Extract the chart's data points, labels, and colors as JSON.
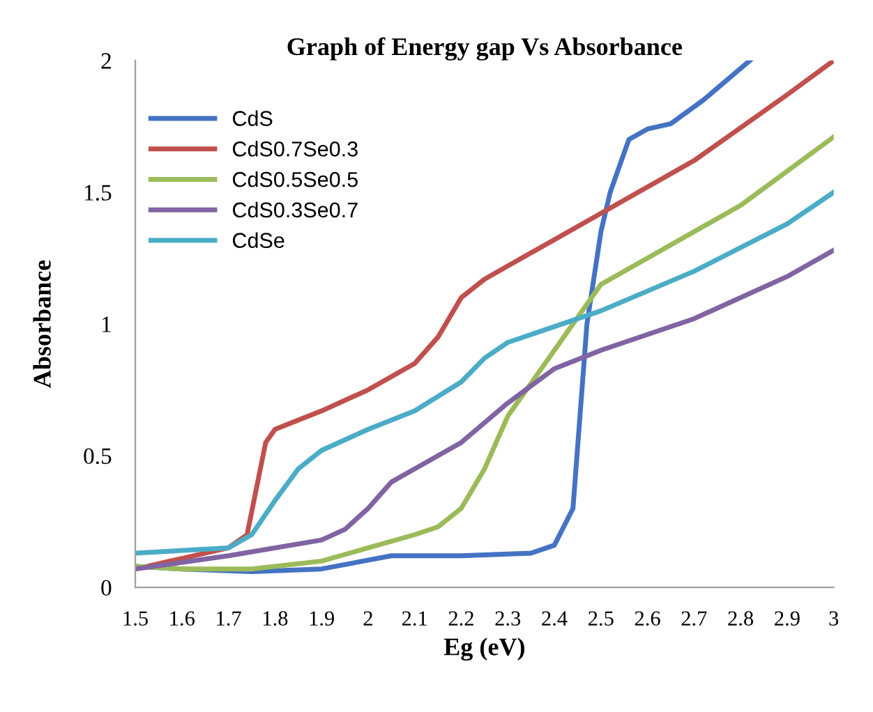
{
  "chart_data": {
    "type": "line",
    "title": "Graph of Energy gap Vs Absorbance",
    "xlabel": "Eg (eV)",
    "ylabel": "Absorbance",
    "xlim": [
      1.5,
      3.0
    ],
    "xticks": [
      1.5,
      1.6,
      1.7,
      1.8,
      1.9,
      2,
      2.1,
      2.2,
      2.3,
      2.4,
      2.5,
      2.6,
      2.7,
      2.8,
      2.9,
      3
    ],
    "ylim": [
      0,
      2
    ],
    "yticks": [
      0,
      0.5,
      1,
      1.5,
      2
    ],
    "grid": false,
    "legend": "top left",
    "marker": "none",
    "line_style": "solid",
    "series": [
      {
        "name": "CdS",
        "color": "#4472c4",
        "x": [
          1.5,
          1.6,
          1.75,
          1.9,
          2.05,
          2.2,
          2.35,
          2.4,
          2.44,
          2.47,
          2.5,
          2.52,
          2.56,
          2.6,
          2.65,
          2.72,
          2.82
        ],
        "values": [
          0.08,
          0.07,
          0.06,
          0.07,
          0.12,
          0.12,
          0.13,
          0.16,
          0.3,
          1.0,
          1.35,
          1.5,
          1.7,
          1.74,
          1.76,
          1.85,
          2.0
        ]
      },
      {
        "name": "CdS0.7Se0.3",
        "color": "#c0504d",
        "x": [
          1.5,
          1.6,
          1.7,
          1.74,
          1.78,
          1.8,
          1.9,
          2.0,
          2.1,
          2.15,
          2.2,
          2.25,
          2.3,
          2.5,
          2.7,
          2.9,
          3.0
        ],
        "values": [
          0.07,
          0.11,
          0.15,
          0.2,
          0.55,
          0.6,
          0.67,
          0.75,
          0.85,
          0.95,
          1.1,
          1.17,
          1.22,
          1.42,
          1.62,
          1.87,
          2.0
        ]
      },
      {
        "name": "CdS0.5Se0.5",
        "color": "#9bbb59",
        "x": [
          1.5,
          1.6,
          1.75,
          1.9,
          2.0,
          2.1,
          2.15,
          2.2,
          2.25,
          2.3,
          2.4,
          2.5,
          2.6,
          2.8,
          3.0
        ],
        "values": [
          0.08,
          0.07,
          0.07,
          0.1,
          0.15,
          0.2,
          0.23,
          0.3,
          0.45,
          0.65,
          0.9,
          1.15,
          1.25,
          1.45,
          1.71
        ]
      },
      {
        "name": "CdS0.3Se0.7",
        "color": "#8064a2",
        "x": [
          1.5,
          1.7,
          1.9,
          1.95,
          2.0,
          2.05,
          2.1,
          2.2,
          2.3,
          2.4,
          2.5,
          2.7,
          2.9,
          3.0
        ],
        "values": [
          0.07,
          0.12,
          0.18,
          0.22,
          0.3,
          0.4,
          0.45,
          0.55,
          0.7,
          0.83,
          0.9,
          1.02,
          1.18,
          1.28
        ]
      },
      {
        "name": "CdSe",
        "color": "#4bacc6",
        "x": [
          1.5,
          1.7,
          1.75,
          1.8,
          1.85,
          1.9,
          2.0,
          2.1,
          2.2,
          2.25,
          2.3,
          2.5,
          2.7,
          2.9,
          3.0
        ],
        "values": [
          0.13,
          0.15,
          0.2,
          0.33,
          0.45,
          0.52,
          0.6,
          0.67,
          0.78,
          0.87,
          0.93,
          1.05,
          1.2,
          1.38,
          1.5
        ]
      }
    ]
  }
}
